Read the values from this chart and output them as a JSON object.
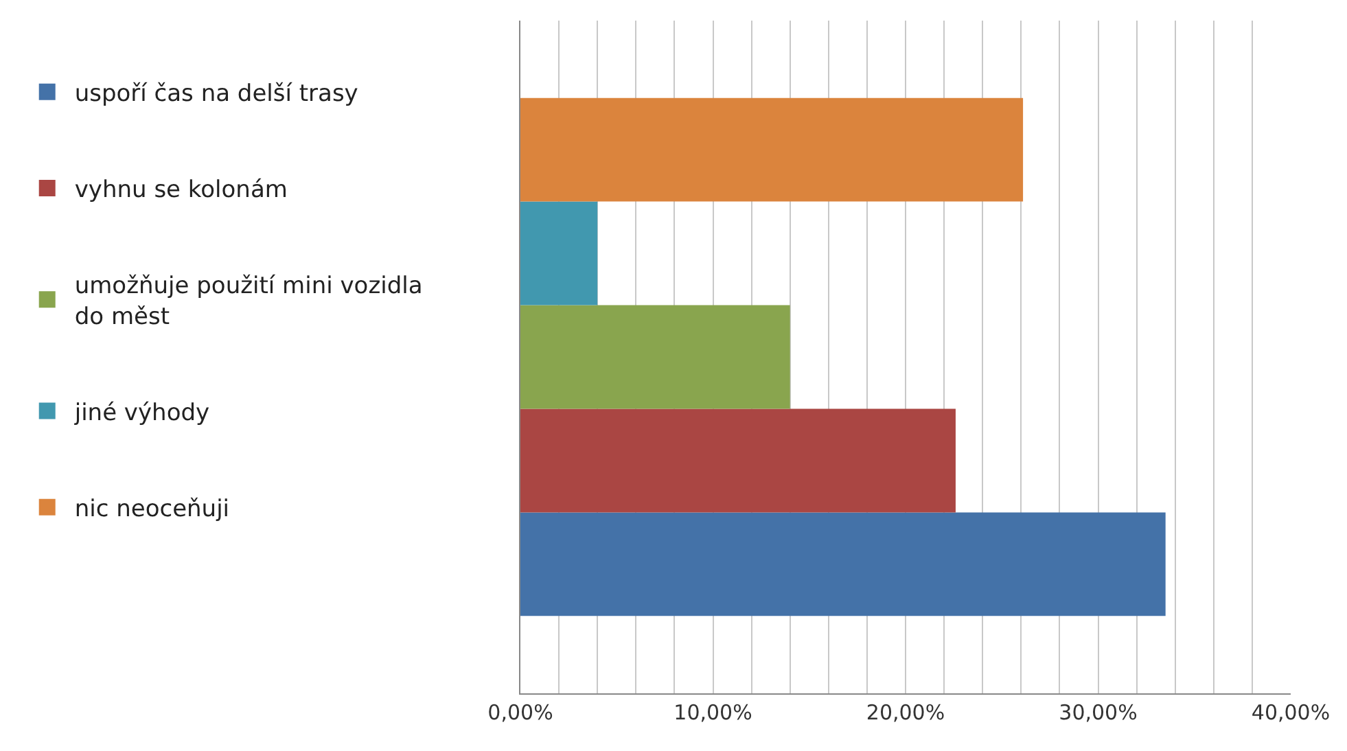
{
  "chart_data": {
    "type": "bar",
    "orientation": "horizontal",
    "categories": [
      null
    ],
    "series": [
      {
        "name": "uspoří čas na delší trasy",
        "color": "#4472a8",
        "values": [
          33.5
        ]
      },
      {
        "name": "vyhnu se kolonám",
        "color": "#aa4643",
        "values": [
          22.6
        ]
      },
      {
        "name": "umožňuje použití mini vozidla do měst",
        "color": "#89a54e",
        "values": [
          14.0
        ]
      },
      {
        "name": "jiné výhody",
        "color": "#4198af",
        "values": [
          4.0
        ]
      },
      {
        "name": "nic neoceňuji",
        "color": "#db843d",
        "values": [
          26.1
        ]
      }
    ],
    "xlim": [
      0,
      40
    ],
    "xticks": [
      {
        "value": 0,
        "label": "0,00%"
      },
      {
        "value": 2,
        "label": null
      },
      {
        "value": 4,
        "label": null
      },
      {
        "value": 6,
        "label": null
      },
      {
        "value": 8,
        "label": null
      },
      {
        "value": 10,
        "label": "10,00%"
      },
      {
        "value": 12,
        "label": null
      },
      {
        "value": 14,
        "label": null
      },
      {
        "value": 16,
        "label": null
      },
      {
        "value": 18,
        "label": null
      },
      {
        "value": 20,
        "label": "20,00%"
      },
      {
        "value": 22,
        "label": null
      },
      {
        "value": 24,
        "label": null
      },
      {
        "value": 26,
        "label": null
      },
      {
        "value": 28,
        "label": null
      },
      {
        "value": 30,
        "label": "30,00%"
      },
      {
        "value": 32,
        "label": null
      },
      {
        "value": 34,
        "label": null
      },
      {
        "value": 36,
        "label": null
      },
      {
        "value": 38,
        "label": null
      },
      {
        "value": 40,
        "label": "40,00%"
      }
    ],
    "grid": "x",
    "legend": "left",
    "tick_labels": "x"
  }
}
